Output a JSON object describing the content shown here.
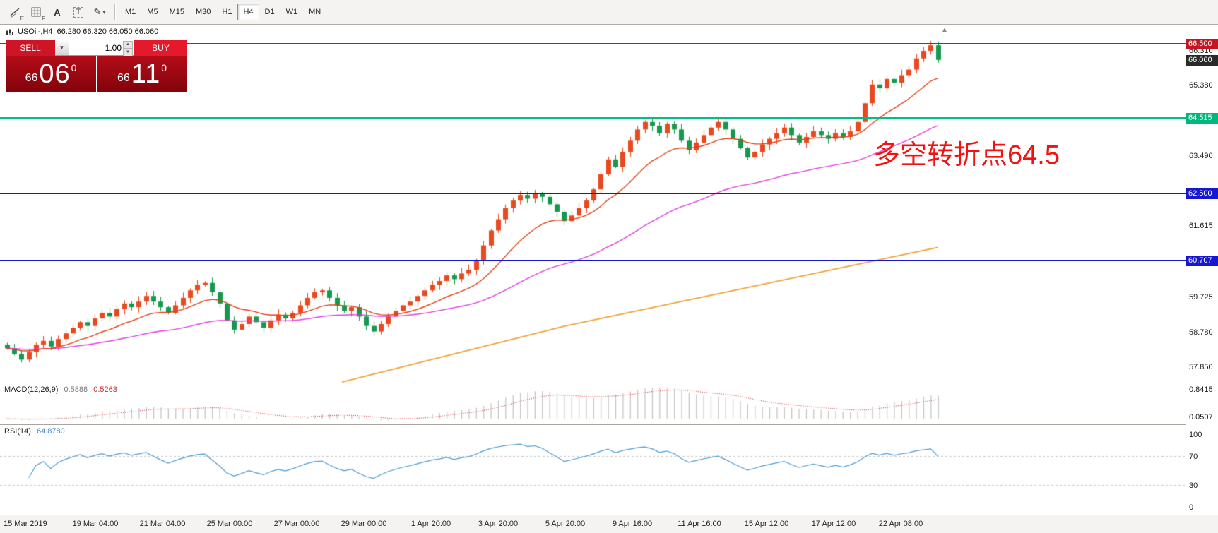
{
  "toolbar": {
    "tools": [
      {
        "id": "trendline-tools",
        "sub": "E"
      },
      {
        "id": "grid-tools",
        "sub": "F"
      },
      {
        "id": "text-label-tool",
        "glyph": "A",
        "sub": ""
      },
      {
        "id": "text-box-tool",
        "glyph": "T",
        "sub": ""
      },
      {
        "id": "drawing-menu",
        "glyph": "✎",
        "sub": "▾"
      }
    ],
    "timeframes": [
      "M1",
      "M5",
      "M15",
      "M30",
      "H1",
      "H4",
      "D1",
      "W1",
      "MN"
    ],
    "active_timeframe": "H4"
  },
  "chart_header": {
    "symbol": "USOil-,H4",
    "ohlc": "66.280 66.320 66.050 66.060"
  },
  "trade_panel": {
    "sell_label": "SELL",
    "buy_label": "BUY",
    "volume": "1.00",
    "sell_price_int": "66",
    "sell_price_big": "06",
    "sell_price_sup": "0",
    "buy_price_int": "66",
    "buy_price_big": "11",
    "buy_price_sup": "0"
  },
  "annotation": {
    "text": "多空转折点64.5",
    "color": "#f21212"
  },
  "macd": {
    "name": "MACD(12,26,9)",
    "value": "0.5888",
    "signal": "0.5263",
    "axis_labels": [
      {
        "text": "0.8415",
        "value": 0.8415
      },
      {
        "text": "0.0507",
        "value": 0.0507
      }
    ]
  },
  "rsi": {
    "name": "RSI(14)",
    "value": "64.8780",
    "levels": [
      70,
      30
    ],
    "axis_labels": [
      {
        "text": "100",
        "value": 100
      },
      {
        "text": "70",
        "value": 70
      },
      {
        "text": "30",
        "value": 30
      },
      {
        "text": "0",
        "value": 0
      }
    ]
  },
  "price_axis": {
    "labels": [
      {
        "text": "66.310",
        "price": 66.31
      },
      {
        "text": "65.380",
        "price": 65.38
      },
      {
        "text": "63.490",
        "price": 63.49
      },
      {
        "text": "61.615",
        "price": 61.615
      },
      {
        "text": "59.725",
        "price": 59.725
      },
      {
        "text": "58.780",
        "price": 58.78
      },
      {
        "text": "57.850",
        "price": 57.85
      }
    ],
    "badges": [
      {
        "text": "66.500",
        "price": 66.5,
        "bg": "#c31622"
      },
      {
        "text": "66.060",
        "price": 66.06,
        "bg": "#2a2a2a"
      },
      {
        "text": "64.515",
        "price": 64.515,
        "bg": "#00b87c"
      },
      {
        "text": "62.500",
        "price": 62.5,
        "bg": "#1717cf"
      },
      {
        "text": "60.707",
        "price": 60.707,
        "bg": "#1717cf"
      }
    ]
  },
  "chart_data": {
    "type": "candlestick",
    "symbol": "USOil-",
    "timeframe": "H4",
    "ohlc_current": {
      "open": 66.28,
      "high": 66.32,
      "low": 66.05,
      "close": 66.06
    },
    "visible_price_range": [
      57.55,
      67.0
    ],
    "conventions": {
      "up_color": "#e8491e",
      "down_color": "#149a4c",
      "note": "red candles = up, green candles = down"
    },
    "first_open": 58.45,
    "closes": [
      58.35,
      58.2,
      58.05,
      58.25,
      58.45,
      58.55,
      58.4,
      58.6,
      58.75,
      58.9,
      59.05,
      58.95,
      59.15,
      59.3,
      59.2,
      59.4,
      59.55,
      59.45,
      59.6,
      59.75,
      59.6,
      59.45,
      59.3,
      59.5,
      59.7,
      59.9,
      60.05,
      60.1,
      59.85,
      59.55,
      59.1,
      58.85,
      59.0,
      59.2,
      59.05,
      58.9,
      59.1,
      59.25,
      59.15,
      59.3,
      59.5,
      59.7,
      59.85,
      59.9,
      59.7,
      59.5,
      59.35,
      59.45,
      59.2,
      58.95,
      58.8,
      59.0,
      59.2,
      59.35,
      59.5,
      59.6,
      59.75,
      59.9,
      60.05,
      60.15,
      60.3,
      60.2,
      60.35,
      60.45,
      60.7,
      61.1,
      61.5,
      61.8,
      62.1,
      62.3,
      62.45,
      62.35,
      62.5,
      62.4,
      62.2,
      62.0,
      61.75,
      61.9,
      62.1,
      62.3,
      62.6,
      63.0,
      63.4,
      63.2,
      63.6,
      63.9,
      64.2,
      64.4,
      64.3,
      64.1,
      64.35,
      64.2,
      63.9,
      63.65,
      63.85,
      64.05,
      64.25,
      64.4,
      64.2,
      63.95,
      63.7,
      63.45,
      63.6,
      63.8,
      63.95,
      64.1,
      64.25,
      64.05,
      63.85,
      64.0,
      64.15,
      64.05,
      63.95,
      64.1,
      64.0,
      64.15,
      64.4,
      64.9,
      65.4,
      65.3,
      65.55,
      65.45,
      65.65,
      65.8,
      66.1,
      66.3,
      66.45,
      66.06
    ],
    "overlays": {
      "ma_fast": {
        "period": 13,
        "color": "#e04014"
      },
      "ma_slow": {
        "period": 45,
        "color": "#e03ce0"
      },
      "trend_line": {
        "color": "#efa33a",
        "points": [
          {
            "x_frac": 0.36,
            "price": 57.45
          },
          {
            "x_frac": 0.6,
            "price": 58.95
          },
          {
            "x_frac": 1.0,
            "price": 61.05
          }
        ]
      }
    },
    "hlines": [
      {
        "price": 66.5,
        "color": "#c31622"
      },
      {
        "price": 64.515,
        "color": "#00bf83"
      },
      {
        "price": 62.5,
        "color": "#1717cf"
      },
      {
        "price": 60.707,
        "color": "#1717cf"
      }
    ],
    "indicators": [
      {
        "type": "MACD",
        "params": [
          12,
          26,
          9
        ],
        "current": [
          0.5888,
          0.5263
        ],
        "histogram_color": "#c2c2c2",
        "signal_color": "#cf1f1f"
      },
      {
        "type": "RSI",
        "params": [
          14
        ],
        "current": 64.878,
        "line_color": "#4a9ad4"
      }
    ],
    "time_labels": [
      "15 Mar 2019",
      "19 Mar 04:00",
      "21 Mar 04:00",
      "25 Mar 00:00",
      "27 Mar 00:00",
      "29 Mar 00:00",
      "1 Apr 20:00",
      "3 Apr 20:00",
      "5 Apr 20:00",
      "9 Apr 16:00",
      "11 Apr 16:00",
      "15 Apr 12:00",
      "17 Apr 12:00",
      "22 Apr 08:00"
    ]
  }
}
